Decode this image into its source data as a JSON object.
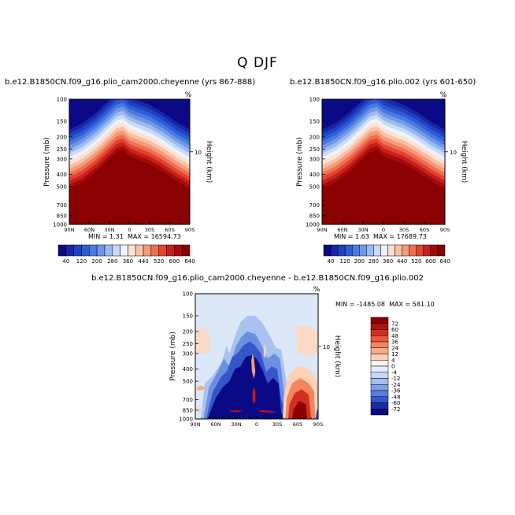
{
  "figure_title": "Q DJF",
  "panels": [
    {
      "title": "b.e12.B1850CN.f09_g16.plio_cam2000.cheyenne (yrs 867-888)",
      "min_label": "MIN =",
      "min_value": "1.31",
      "max_label": "MAX =",
      "max_value": "16594.73",
      "ylabel_left": "Pressure (mb)",
      "ylabel_right": "Height (km)",
      "corner_mark": "%"
    },
    {
      "title": "b.e12.B1850CN.f09_g16.plio.002 (yrs 601-650)",
      "min_label": "MIN =",
      "min_value": "1.63",
      "max_label": "MAX =",
      "max_value": "17689.73",
      "ylabel_left": "Pressure (mb)",
      "ylabel_right": "Height (km)",
      "corner_mark": "%"
    },
    {
      "title": "b.e12.B1850CN.f09_g16.plio_cam2000.cheyenne - b.e12.B1850CN.f09_g16.plio.002",
      "min_label": "MIN =",
      "min_value": "-1485.08",
      "max_label": "MAX =",
      "max_value": "581.10",
      "ylabel_left": "Pressure (mb)",
      "ylabel_right": "Height (km)",
      "corner_mark": "%"
    }
  ],
  "chart_data": [
    {
      "type": "heatmap",
      "title": "b.e12.B1850CN.f09_g16.plio_cam2000.cheyenne (yrs 867-888)",
      "xlabel": "",
      "ylabel": "Pressure (mb)",
      "ylabel_right": "Height (km)",
      "x_ticks": [
        "90N",
        "60N",
        "30N",
        "0",
        "30S",
        "60S",
        "90S"
      ],
      "x_values": [
        90,
        60,
        30,
        0,
        -30,
        -60,
        -90
      ],
      "y_ticks": [
        "100",
        "150",
        "200",
        "250",
        "300",
        "400",
        "500",
        "700",
        "850",
        "1000"
      ],
      "y_values": [
        100,
        150,
        200,
        250,
        300,
        400,
        500,
        700,
        850,
        1000
      ],
      "y_scale": "log",
      "ylim": [
        1000,
        100
      ],
      "right_axis_ticks": [
        "10"
      ],
      "colorbar_levels": [
        40,
        80,
        120,
        160,
        200,
        240,
        280,
        320,
        360,
        400,
        440,
        480,
        520,
        560,
        600,
        640
      ],
      "colorbar_labels": [
        "40",
        "120",
        "200",
        "280",
        "360",
        "440",
        "520",
        "600",
        "640"
      ],
      "colorbar_orientation": "horizontal",
      "min": 1.31,
      "max": 16594.73,
      "contour_profile": {
        "lat": [
          90,
          70,
          50,
          30,
          20,
          10,
          0,
          -10,
          -20,
          -30,
          -50,
          -70,
          -90
        ],
        "pressure_at_640": [
          520,
          460,
          380,
          300,
          265,
          255,
          285,
          300,
          315,
          330,
          380,
          450,
          520
        ]
      }
    },
    {
      "type": "heatmap",
      "title": "b.e12.B1850CN.f09_g16.plio.002 (yrs 601-650)",
      "xlabel": "",
      "ylabel": "Pressure (mb)",
      "ylabel_right": "Height (km)",
      "x_ticks": [
        "90N",
        "60N",
        "30N",
        "0",
        "30S",
        "60S",
        "90S"
      ],
      "x_values": [
        90,
        60,
        30,
        0,
        -30,
        -60,
        -90
      ],
      "y_ticks": [
        "100",
        "150",
        "200",
        "250",
        "300",
        "400",
        "500",
        "700",
        "850",
        "1000"
      ],
      "y_values": [
        100,
        150,
        200,
        250,
        300,
        400,
        500,
        700,
        850,
        1000
      ],
      "y_scale": "log",
      "ylim": [
        1000,
        100
      ],
      "right_axis_ticks": [
        "10"
      ],
      "colorbar_levels": [
        40,
        80,
        120,
        160,
        200,
        240,
        280,
        320,
        360,
        400,
        440,
        480,
        520,
        560,
        600,
        640
      ],
      "colorbar_labels": [
        "40",
        "120",
        "200",
        "280",
        "360",
        "440",
        "520",
        "600",
        "640"
      ],
      "colorbar_orientation": "horizontal",
      "min": 1.63,
      "max": 17689.73,
      "contour_profile": {
        "lat": [
          90,
          70,
          50,
          30,
          20,
          10,
          0,
          -10,
          -20,
          -30,
          -50,
          -70,
          -90
        ],
        "pressure_at_640": [
          520,
          460,
          380,
          300,
          265,
          255,
          285,
          300,
          315,
          330,
          380,
          450,
          520
        ]
      }
    },
    {
      "type": "heatmap",
      "title": "b.e12.B1850CN.f09_g16.plio_cam2000.cheyenne - b.e12.B1850CN.f09_g16.plio.002",
      "xlabel": "",
      "ylabel": "Pressure (mb)",
      "ylabel_right": "Height (km)",
      "x_ticks": [
        "90N",
        "60N",
        "30N",
        "0",
        "30S",
        "60S",
        "90S"
      ],
      "x_values": [
        90,
        60,
        30,
        0,
        -30,
        -60,
        -90
      ],
      "y_ticks": [
        "100",
        "150",
        "200",
        "250",
        "300",
        "400",
        "500",
        "700",
        "850",
        "1000"
      ],
      "y_values": [
        100,
        150,
        200,
        250,
        300,
        400,
        500,
        700,
        850,
        1000
      ],
      "y_scale": "log",
      "ylim": [
        1000,
        100
      ],
      "right_axis_ticks": [
        "10"
      ],
      "colorbar_levels": [
        72,
        60,
        48,
        36,
        24,
        12,
        4,
        0,
        -4,
        -12,
        -24,
        -36,
        -48,
        -60,
        -72
      ],
      "colorbar_labels": [
        "72",
        "60",
        "48",
        "36",
        "24",
        "12",
        "4",
        "0",
        "-4",
        "-12",
        "-24",
        "-36",
        "-48",
        "-60",
        "-72"
      ],
      "colorbar_orientation": "vertical",
      "min": -1485.08,
      "max": 581.1
    }
  ],
  "colors": {
    "dark_red": "#8b0000",
    "dark_blue": "#00008b",
    "frame": "#000000"
  },
  "icons": {
    "corner_mark": "percent-glyph"
  }
}
